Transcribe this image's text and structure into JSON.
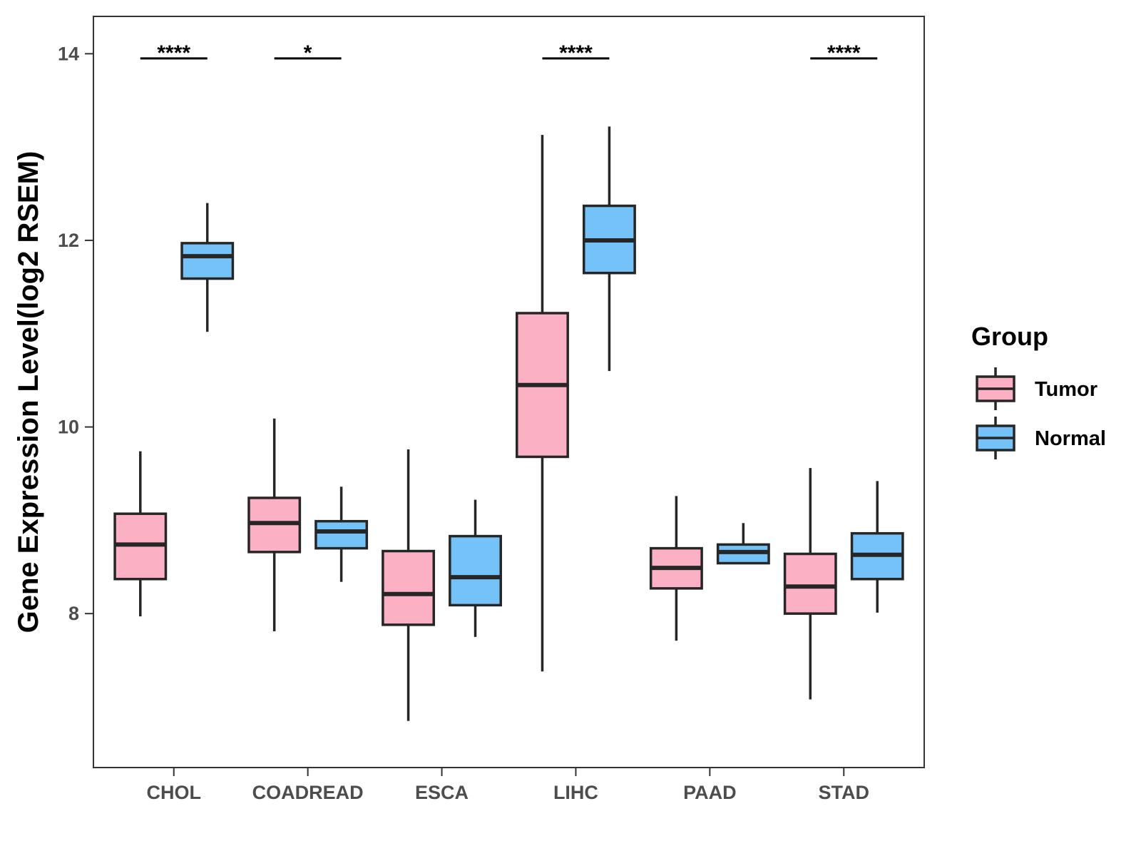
{
  "chart_data": {
    "type": "boxplot",
    "title": "",
    "xlabel": "",
    "ylabel": "Gene Expression Level(log2 RSEM)",
    "ylim": [
      6.35,
      14.4
    ],
    "yticks": [
      8,
      10,
      12,
      14
    ],
    "grid": false,
    "categories": [
      "CHOL",
      "COADREAD",
      "ESCA",
      "LIHC",
      "PAAD",
      "STAD"
    ],
    "legend": {
      "title": "Group",
      "position": "right",
      "entries": [
        {
          "label": "Tumor",
          "color": "#FBB1C3"
        },
        {
          "label": "Normal",
          "color": "#75C2F8"
        }
      ]
    },
    "series": [
      {
        "name": "Tumor",
        "color": "#FBB1C3",
        "boxes": [
          {
            "min": 7.97,
            "q1": 8.37,
            "median": 8.74,
            "q3": 9.07,
            "max": 9.74
          },
          {
            "min": 7.81,
            "q1": 8.66,
            "median": 8.97,
            "q3": 9.24,
            "max": 10.09
          },
          {
            "min": 6.85,
            "q1": 7.88,
            "median": 8.21,
            "q3": 8.67,
            "max": 9.76
          },
          {
            "min": 7.38,
            "q1": 9.68,
            "median": 10.45,
            "q3": 11.22,
            "max": 13.13
          },
          {
            "min": 7.71,
            "q1": 8.27,
            "median": 8.49,
            "q3": 8.7,
            "max": 9.26
          },
          {
            "min": 7.08,
            "q1": 8.0,
            "median": 8.29,
            "q3": 8.64,
            "max": 9.56
          }
        ]
      },
      {
        "name": "Normal",
        "color": "#75C2F8",
        "boxes": [
          {
            "min": 11.02,
            "q1": 11.59,
            "median": 11.83,
            "q3": 11.97,
            "max": 12.4
          },
          {
            "min": 8.34,
            "q1": 8.7,
            "median": 8.88,
            "q3": 8.99,
            "max": 9.36
          },
          {
            "min": 7.75,
            "q1": 8.09,
            "median": 8.39,
            "q3": 8.83,
            "max": 9.22
          },
          {
            "min": 10.6,
            "q1": 11.65,
            "median": 12.0,
            "q3": 12.37,
            "max": 13.22
          },
          {
            "min": 8.54,
            "q1": 8.54,
            "median": 8.66,
            "q3": 8.74,
            "max": 8.97
          },
          {
            "min": 8.01,
            "q1": 8.37,
            "median": 8.63,
            "q3": 8.86,
            "max": 9.42
          }
        ]
      }
    ],
    "annotations": [
      {
        "category": "CHOL",
        "label": "****",
        "y": 13.95
      },
      {
        "category": "COADREAD",
        "label": "*",
        "y": 13.95
      },
      {
        "category": "LIHC",
        "label": "****",
        "y": 13.95
      },
      {
        "category": "STAD",
        "label": "****",
        "y": 13.95
      }
    ]
  }
}
